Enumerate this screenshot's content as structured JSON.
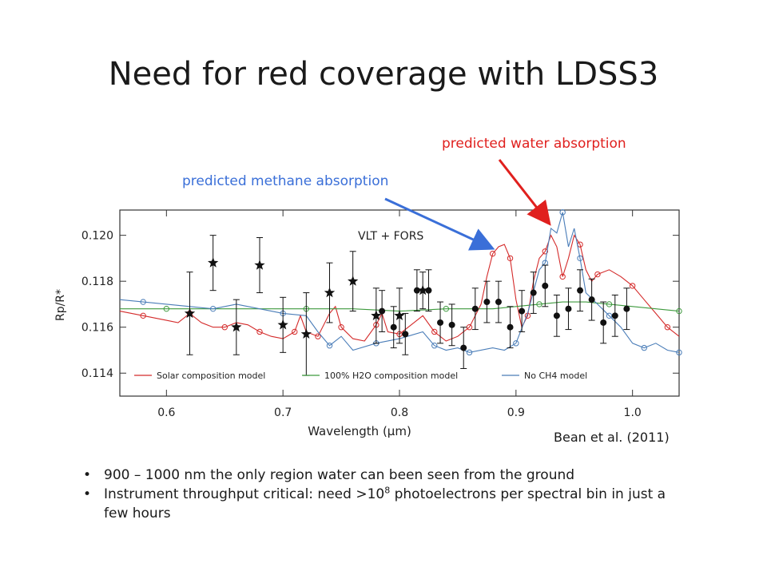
{
  "slide": {
    "title": "Need for red coverage with LDSS3",
    "annotation_water": "predicted water absorption",
    "annotation_methane": "predicted methane absorption",
    "credit": "Bean et al. (2011)",
    "bullet1": "900 – 1000 nm the only region water can been seen from the ground",
    "bullet2_pre": "Instrument throughput critical: need >10",
    "bullet2_sup": "8",
    "bullet2_post": " photoelectrons per spectral bin in just a few hours",
    "colors": {
      "water_arrow": "#e0201e",
      "methane_arrow": "#3a6fd8"
    }
  },
  "chart_data": {
    "type": "scatter",
    "title": "VLT + FORS",
    "xlabel": "Wavelength (μm)",
    "ylabel": "Rp/R*",
    "xlim": [
      0.56,
      1.04
    ],
    "ylim": [
      0.113,
      0.1211
    ],
    "xticks": [
      "0.6",
      "0.7",
      "0.8",
      "0.9",
      "1.0"
    ],
    "yticks": [
      "0.114",
      "0.116",
      "0.118",
      "0.120"
    ],
    "legend": [
      "Solar composition model",
      "100% H2O composition model",
      "No CH4 model"
    ],
    "legend_position": "bottom",
    "grid": false,
    "series": [
      {
        "name": "Solar composition model",
        "kind": "line",
        "color": "#d42a2a",
        "points": [
          [
            0.56,
            0.1167
          ],
          [
            0.58,
            0.1165
          ],
          [
            0.6,
            0.1163
          ],
          [
            0.61,
            0.1162
          ],
          [
            0.62,
            0.1166
          ],
          [
            0.63,
            0.1162
          ],
          [
            0.64,
            0.116
          ],
          [
            0.65,
            0.116
          ],
          [
            0.66,
            0.1162
          ],
          [
            0.67,
            0.1161
          ],
          [
            0.68,
            0.1158
          ],
          [
            0.69,
            0.1156
          ],
          [
            0.7,
            0.1155
          ],
          [
            0.71,
            0.1158
          ],
          [
            0.715,
            0.1165
          ],
          [
            0.72,
            0.1158
          ],
          [
            0.73,
            0.1156
          ],
          [
            0.74,
            0.1166
          ],
          [
            0.745,
            0.1169
          ],
          [
            0.75,
            0.116
          ],
          [
            0.76,
            0.1155
          ],
          [
            0.77,
            0.1154
          ],
          [
            0.78,
            0.1161
          ],
          [
            0.785,
            0.1166
          ],
          [
            0.79,
            0.1158
          ],
          [
            0.8,
            0.1157
          ],
          [
            0.81,
            0.1161
          ],
          [
            0.82,
            0.1165
          ],
          [
            0.83,
            0.1158
          ],
          [
            0.84,
            0.1154
          ],
          [
            0.85,
            0.1156
          ],
          [
            0.86,
            0.116
          ],
          [
            0.87,
            0.117
          ],
          [
            0.875,
            0.1182
          ],
          [
            0.88,
            0.1192
          ],
          [
            0.885,
            0.1195
          ],
          [
            0.89,
            0.1196
          ],
          [
            0.895,
            0.119
          ],
          [
            0.9,
            0.1172
          ],
          [
            0.905,
            0.116
          ],
          [
            0.91,
            0.1165
          ],
          [
            0.915,
            0.118
          ],
          [
            0.92,
            0.119
          ],
          [
            0.925,
            0.1193
          ],
          [
            0.93,
            0.12
          ],
          [
            0.935,
            0.1195
          ],
          [
            0.94,
            0.1182
          ],
          [
            0.945,
            0.119
          ],
          [
            0.95,
            0.12
          ],
          [
            0.955,
            0.1196
          ],
          [
            0.96,
            0.1185
          ],
          [
            0.965,
            0.118
          ],
          [
            0.97,
            0.1183
          ],
          [
            0.98,
            0.1185
          ],
          [
            0.99,
            0.1182
          ],
          [
            1.0,
            0.1178
          ],
          [
            1.01,
            0.1172
          ],
          [
            1.02,
            0.1166
          ],
          [
            1.03,
            0.116
          ],
          [
            1.04,
            0.1156
          ]
        ]
      },
      {
        "name": "100% H2O composition model",
        "kind": "line",
        "color": "#3e9a3e",
        "points": [
          [
            0.56,
            0.1168
          ],
          [
            0.6,
            0.1168
          ],
          [
            0.64,
            0.1168
          ],
          [
            0.68,
            0.1168
          ],
          [
            0.72,
            0.1168
          ],
          [
            0.76,
            0.1168
          ],
          [
            0.8,
            0.1167
          ],
          [
            0.84,
            0.1168
          ],
          [
            0.88,
            0.1168
          ],
          [
            0.9,
            0.1169
          ],
          [
            0.92,
            0.117
          ],
          [
            0.94,
            0.1171
          ],
          [
            0.96,
            0.1171
          ],
          [
            0.98,
            0.117
          ],
          [
            1.0,
            0.1169
          ],
          [
            1.02,
            0.1168
          ],
          [
            1.04,
            0.1167
          ]
        ]
      },
      {
        "name": "No CH4 model",
        "kind": "line",
        "color": "#4a7db8",
        "points": [
          [
            0.56,
            0.1172
          ],
          [
            0.58,
            0.1171
          ],
          [
            0.6,
            0.117
          ],
          [
            0.62,
            0.1169
          ],
          [
            0.64,
            0.1168
          ],
          [
            0.66,
            0.117
          ],
          [
            0.68,
            0.1168
          ],
          [
            0.7,
            0.1166
          ],
          [
            0.72,
            0.1165
          ],
          [
            0.73,
            0.1158
          ],
          [
            0.74,
            0.1152
          ],
          [
            0.75,
            0.1156
          ],
          [
            0.76,
            0.115
          ],
          [
            0.78,
            0.1153
          ],
          [
            0.8,
            0.1155
          ],
          [
            0.82,
            0.1158
          ],
          [
            0.83,
            0.1152
          ],
          [
            0.84,
            0.115
          ],
          [
            0.85,
            0.1151
          ],
          [
            0.86,
            0.1149
          ],
          [
            0.88,
            0.1151
          ],
          [
            0.89,
            0.115
          ],
          [
            0.9,
            0.1153
          ],
          [
            0.91,
            0.1166
          ],
          [
            0.92,
            0.1185
          ],
          [
            0.925,
            0.1188
          ],
          [
            0.93,
            0.1203
          ],
          [
            0.935,
            0.1201
          ],
          [
            0.94,
            0.121
          ],
          [
            0.945,
            0.1195
          ],
          [
            0.95,
            0.1203
          ],
          [
            0.955,
            0.119
          ],
          [
            0.96,
            0.1175
          ],
          [
            0.97,
            0.117
          ],
          [
            0.98,
            0.1165
          ],
          [
            0.99,
            0.116
          ],
          [
            1.0,
            0.1153
          ],
          [
            1.01,
            0.1151
          ],
          [
            1.02,
            0.1153
          ],
          [
            1.03,
            0.115
          ],
          [
            1.04,
            0.1149
          ]
        ]
      },
      {
        "name": "FORS (stars)",
        "kind": "errorbar",
        "marker": "star",
        "color": "#111111",
        "points": [
          [
            0.62,
            0.1166,
            0.0018
          ],
          [
            0.64,
            0.1188,
            0.0012
          ],
          [
            0.66,
            0.116,
            0.0012
          ],
          [
            0.68,
            0.1187,
            0.0012
          ],
          [
            0.7,
            0.1161,
            0.0012
          ],
          [
            0.72,
            0.1157,
            0.0018
          ],
          [
            0.74,
            0.1175,
            0.0013
          ],
          [
            0.76,
            0.118,
            0.0013
          ],
          [
            0.78,
            0.1165,
            0.0012
          ],
          [
            0.8,
            0.1165,
            0.0012
          ],
          [
            0.82,
            0.1176,
            0.0008
          ]
        ]
      },
      {
        "name": "LDSS3 (circles)",
        "kind": "errorbar",
        "marker": "circle",
        "color": "#111111",
        "points": [
          [
            0.785,
            0.1167,
            0.0009
          ],
          [
            0.795,
            0.116,
            0.0009
          ],
          [
            0.805,
            0.1157,
            0.0009
          ],
          [
            0.815,
            0.1176,
            0.0009
          ],
          [
            0.825,
            0.1176,
            0.0009
          ],
          [
            0.835,
            0.1162,
            0.0009
          ],
          [
            0.845,
            0.1161,
            0.0009
          ],
          [
            0.855,
            0.1151,
            0.0009
          ],
          [
            0.865,
            0.1168,
            0.0009
          ],
          [
            0.875,
            0.1171,
            0.0009
          ],
          [
            0.885,
            0.1171,
            0.0009
          ],
          [
            0.895,
            0.116,
            0.0009
          ],
          [
            0.905,
            0.1167,
            0.0009
          ],
          [
            0.915,
            0.1175,
            0.0009
          ],
          [
            0.925,
            0.1178,
            0.0009
          ],
          [
            0.935,
            0.1165,
            0.0009
          ],
          [
            0.945,
            0.1168,
            0.0009
          ],
          [
            0.955,
            0.1176,
            0.0009
          ],
          [
            0.965,
            0.1172,
            0.0009
          ],
          [
            0.975,
            0.1162,
            0.0009
          ],
          [
            0.985,
            0.1165,
            0.0009
          ],
          [
            0.995,
            0.1168,
            0.0009
          ]
        ]
      }
    ]
  }
}
